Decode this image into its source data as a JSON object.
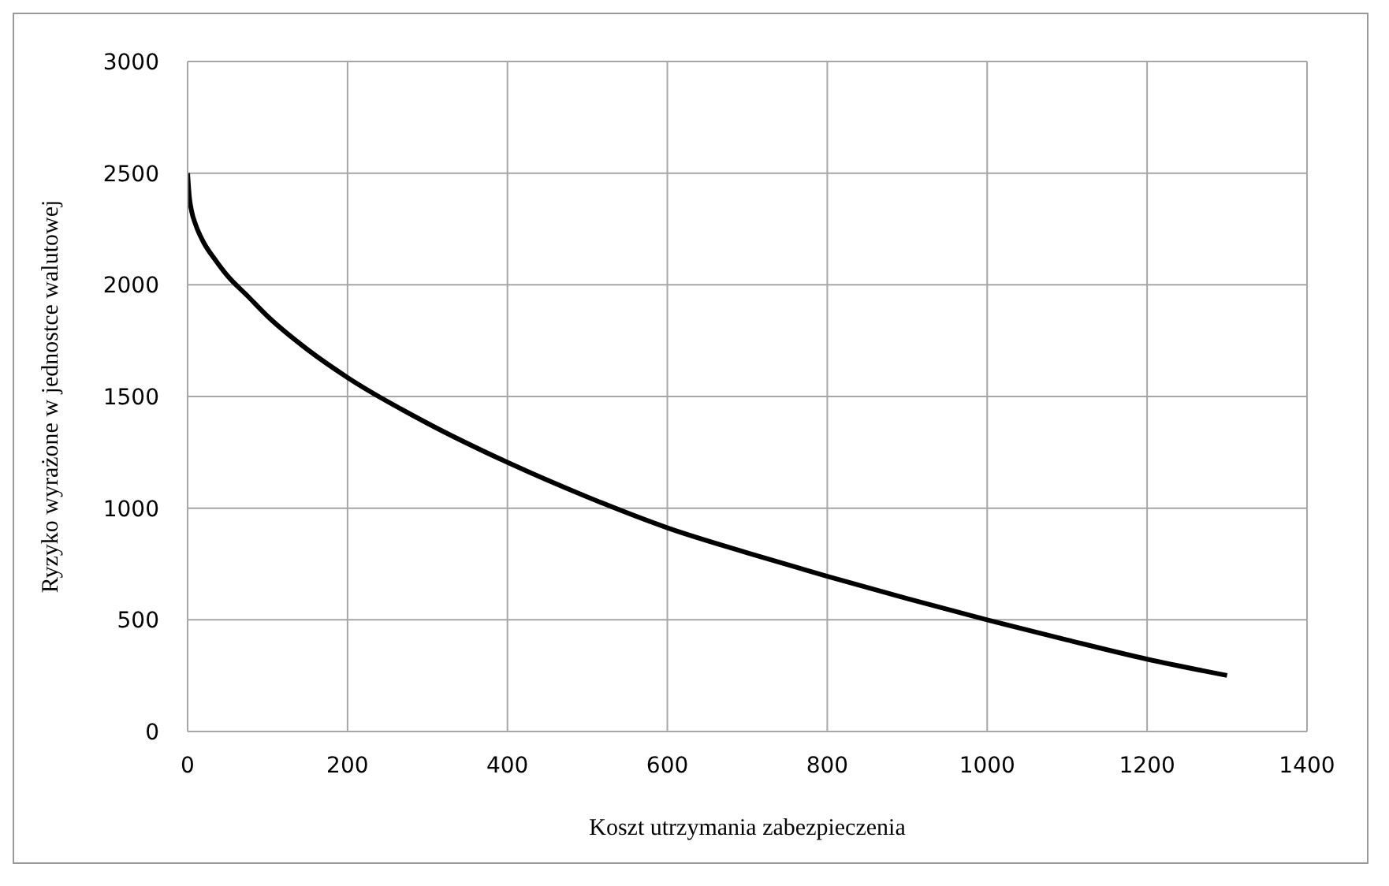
{
  "chart_data": {
    "type": "line",
    "xlabel": "Koszt utrzymania zabezpieczenia",
    "ylabel": "Ryzyko wyrażone w jednostce walutowej",
    "series": [
      {
        "color": "#000000",
        "x": [
          0,
          2,
          5,
          10,
          20,
          35,
          50,
          75,
          100,
          150,
          200,
          300,
          400,
          500,
          600,
          700,
          800,
          900,
          1000,
          1100,
          1200,
          1300
        ],
        "values": [
          2500,
          2400,
          2330,
          2270,
          2190,
          2110,
          2040,
          1950,
          1859,
          1710,
          1585,
          1380,
          1205,
          1050,
          912,
          800,
          695,
          595,
          500,
          410,
          324,
          251
        ]
      }
    ],
    "xlim": [
      0,
      1400
    ],
    "xticks": [
      0,
      200,
      400,
      600,
      800,
      1000,
      1200,
      1400
    ],
    "ylim": [
      0,
      3000
    ],
    "yticks": [
      0,
      500,
      1000,
      1500,
      2000,
      2500,
      3000
    ],
    "grid": true,
    "marker": "none",
    "line_style": "solid"
  }
}
